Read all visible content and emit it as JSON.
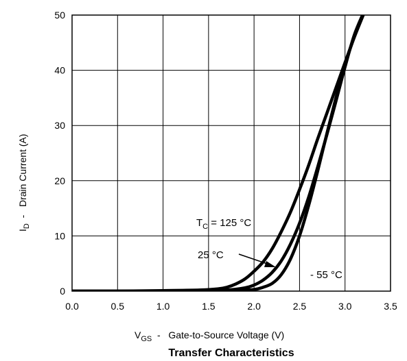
{
  "chart_data": {
    "type": "line",
    "title": "Transfer Characteristics",
    "xlabel": {
      "main": "V",
      "sub": "GS",
      "rest": "  -   Gate-to-Source Voltage (V)"
    },
    "ylabel": {
      "main": "I",
      "sub": "D",
      "rest": "  -   Drain Current (A)"
    },
    "xlim": [
      0,
      3.5
    ],
    "ylim": [
      0,
      50
    ],
    "x_ticks": [
      0.0,
      0.5,
      1.0,
      1.5,
      2.0,
      2.5,
      3.0,
      3.5
    ],
    "x_tick_labels": [
      "0.0",
      "0.5",
      "1.0",
      "1.5",
      "2.0",
      "2.5",
      "3.0",
      "3.5"
    ],
    "y_ticks": [
      0,
      10,
      20,
      30,
      40,
      50
    ],
    "y_tick_labels": [
      "0",
      "10",
      "20",
      "30",
      "40",
      "50"
    ],
    "grid": true,
    "series": [
      {
        "name": "TC = 125 °C",
        "x": [
          0.0,
          0.5,
          1.0,
          1.4,
          1.6,
          1.7,
          1.8,
          1.9,
          2.0,
          2.1,
          2.2,
          2.3,
          2.4,
          2.5,
          2.6,
          2.7,
          2.8,
          2.9,
          3.0,
          3.1,
          3.2
        ],
        "y": [
          0.0,
          0.0,
          0.1,
          0.2,
          0.4,
          0.7,
          1.3,
          2.2,
          3.6,
          5.3,
          7.7,
          10.8,
          14.3,
          18.4,
          22.8,
          27.6,
          32.2,
          36.8,
          41.4,
          45.9,
          50.0
        ]
      },
      {
        "name": "25 °C",
        "x": [
          0.0,
          0.5,
          1.0,
          1.5,
          1.7,
          1.9,
          2.0,
          2.1,
          2.2,
          2.3,
          2.4,
          2.5,
          2.6,
          2.7,
          2.8,
          2.9,
          3.0,
          3.1,
          3.2
        ],
        "y": [
          0.0,
          0.0,
          0.0,
          0.1,
          0.2,
          0.6,
          1.1,
          2.0,
          3.4,
          5.5,
          8.5,
          12.3,
          17.0,
          22.5,
          28.3,
          34.4,
          40.6,
          46.3,
          50.3
        ]
      },
      {
        "name": "- 55 °C",
        "x": [
          0.0,
          0.5,
          1.0,
          1.5,
          1.8,
          2.0,
          2.1,
          2.2,
          2.3,
          2.4,
          2.5,
          2.6,
          2.7,
          2.8,
          2.9,
          3.0,
          3.1,
          3.2
        ],
        "y": [
          0.0,
          0.0,
          0.0,
          0.0,
          0.1,
          0.3,
          0.7,
          1.4,
          3.0,
          5.8,
          10.0,
          15.5,
          21.8,
          28.5,
          35.0,
          41.0,
          46.0,
          50.3
        ]
      }
    ],
    "annotations": [
      {
        "id": "tc-125",
        "main": "T",
        "sub": "C",
        "rest": " = 125 °C"
      },
      {
        "id": "t-25",
        "text": "25 °C"
      },
      {
        "id": "t-minus55",
        "text": "- 55 °C"
      }
    ],
    "colors": {
      "line": "#000000",
      "grid": "#000000",
      "background": "#ffffff"
    }
  }
}
